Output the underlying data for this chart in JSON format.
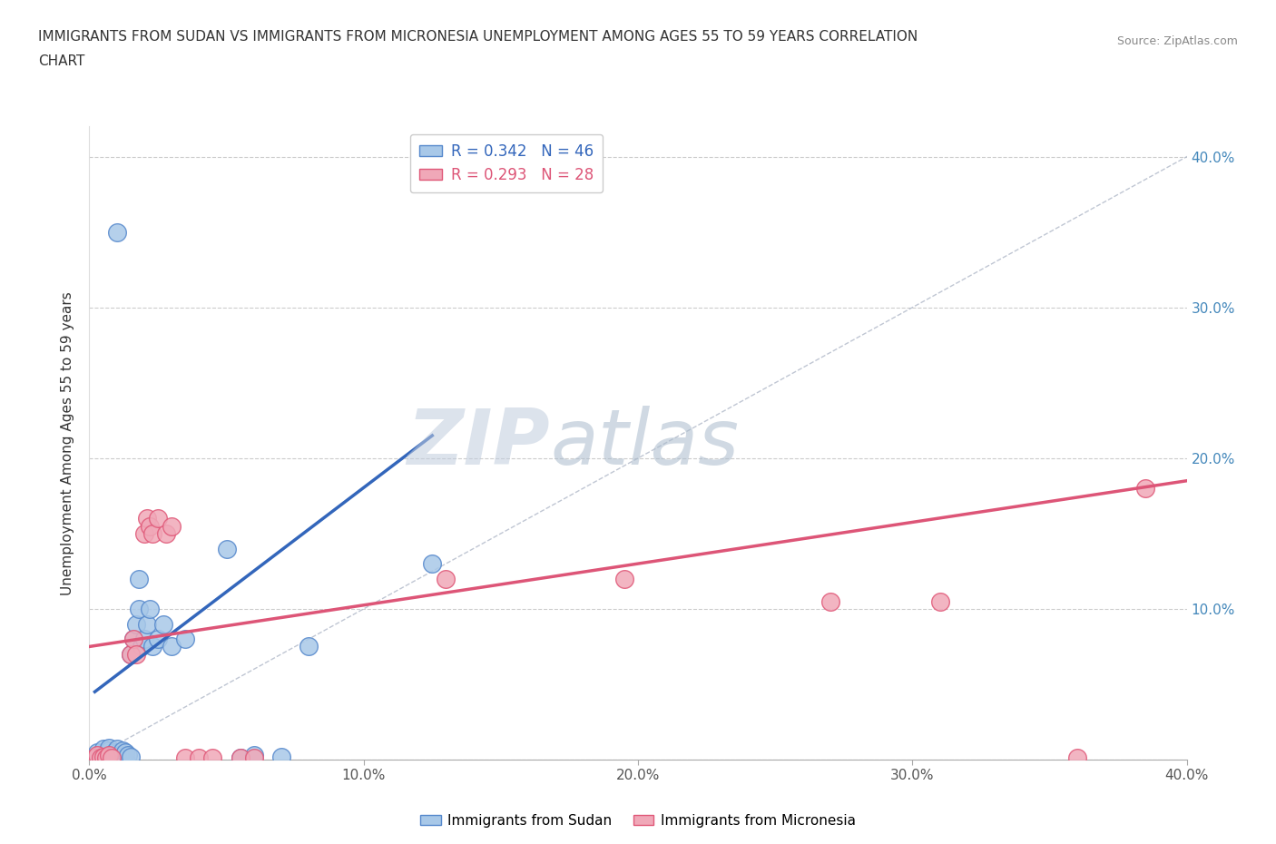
{
  "title_line1": "IMMIGRANTS FROM SUDAN VS IMMIGRANTS FROM MICRONESIA UNEMPLOYMENT AMONG AGES 55 TO 59 YEARS CORRELATION",
  "title_line2": "CHART",
  "source": "Source: ZipAtlas.com",
  "ylabel": "Unemployment Among Ages 55 to 59 years",
  "xlim": [
    0,
    0.4
  ],
  "ylim": [
    0,
    0.42
  ],
  "ytick_values": [
    0.0,
    0.1,
    0.2,
    0.3,
    0.4
  ],
  "xtick_values": [
    0.0,
    0.1,
    0.2,
    0.3,
    0.4
  ],
  "sudan_color": "#a8c8e8",
  "micronesia_color": "#f0a8b8",
  "sudan_edge_color": "#5588cc",
  "micronesia_edge_color": "#e05878",
  "r_sudan": 0.342,
  "n_sudan": 46,
  "r_micronesia": 0.293,
  "n_micronesia": 28,
  "diagonal_color": "#b0b8c8",
  "trend_sudan_color": "#3366bb",
  "trend_micronesia_color": "#dd5577",
  "watermark_zip": "ZIP",
  "watermark_atlas": "atlas",
  "watermark_color_zip": "#c0ccdd",
  "watermark_color_atlas": "#aabbcc",
  "tick_color": "#4488bb",
  "sudan_points": [
    [
      0.002,
      0.001
    ],
    [
      0.003,
      0.002
    ],
    [
      0.003,
      0.005
    ],
    [
      0.004,
      0.001
    ],
    [
      0.005,
      0.003
    ],
    [
      0.005,
      0.007
    ],
    [
      0.006,
      0.001
    ],
    [
      0.006,
      0.004
    ],
    [
      0.007,
      0.002
    ],
    [
      0.007,
      0.006
    ],
    [
      0.007,
      0.008
    ],
    [
      0.008,
      0.001
    ],
    [
      0.008,
      0.003
    ],
    [
      0.009,
      0.002
    ],
    [
      0.009,
      0.005
    ],
    [
      0.01,
      0.001
    ],
    [
      0.01,
      0.004
    ],
    [
      0.01,
      0.007
    ],
    [
      0.011,
      0.003
    ],
    [
      0.012,
      0.002
    ],
    [
      0.012,
      0.006
    ],
    [
      0.013,
      0.001
    ],
    [
      0.013,
      0.005
    ],
    [
      0.014,
      0.003
    ],
    [
      0.015,
      0.002
    ],
    [
      0.015,
      0.07
    ],
    [
      0.016,
      0.08
    ],
    [
      0.017,
      0.09
    ],
    [
      0.018,
      0.1
    ],
    [
      0.018,
      0.12
    ],
    [
      0.019,
      0.075
    ],
    [
      0.02,
      0.08
    ],
    [
      0.021,
      0.09
    ],
    [
      0.022,
      0.1
    ],
    [
      0.023,
      0.075
    ],
    [
      0.025,
      0.08
    ],
    [
      0.027,
      0.09
    ],
    [
      0.03,
      0.075
    ],
    [
      0.035,
      0.08
    ],
    [
      0.055,
      0.001
    ],
    [
      0.06,
      0.003
    ],
    [
      0.07,
      0.002
    ],
    [
      0.01,
      0.35
    ],
    [
      0.125,
      0.13
    ],
    [
      0.05,
      0.14
    ],
    [
      0.08,
      0.075
    ]
  ],
  "micronesia_points": [
    [
      0.002,
      0.001
    ],
    [
      0.003,
      0.003
    ],
    [
      0.004,
      0.001
    ],
    [
      0.005,
      0.002
    ],
    [
      0.006,
      0.001
    ],
    [
      0.007,
      0.003
    ],
    [
      0.008,
      0.001
    ],
    [
      0.015,
      0.07
    ],
    [
      0.016,
      0.08
    ],
    [
      0.017,
      0.07
    ],
    [
      0.02,
      0.15
    ],
    [
      0.021,
      0.16
    ],
    [
      0.022,
      0.155
    ],
    [
      0.023,
      0.15
    ],
    [
      0.025,
      0.16
    ],
    [
      0.028,
      0.15
    ],
    [
      0.03,
      0.155
    ],
    [
      0.035,
      0.001
    ],
    [
      0.04,
      0.001
    ],
    [
      0.045,
      0.001
    ],
    [
      0.055,
      0.001
    ],
    [
      0.06,
      0.001
    ],
    [
      0.13,
      0.12
    ],
    [
      0.195,
      0.12
    ],
    [
      0.27,
      0.105
    ],
    [
      0.31,
      0.105
    ],
    [
      0.36,
      0.001
    ],
    [
      0.385,
      0.18
    ]
  ],
  "sudan_trend_x": [
    0.002,
    0.125
  ],
  "sudan_trend_y_start": 0.045,
  "sudan_trend_y_end": 0.215,
  "micronesia_trend_x": [
    0.0,
    0.4
  ],
  "micronesia_trend_y_start": 0.075,
  "micronesia_trend_y_end": 0.185
}
